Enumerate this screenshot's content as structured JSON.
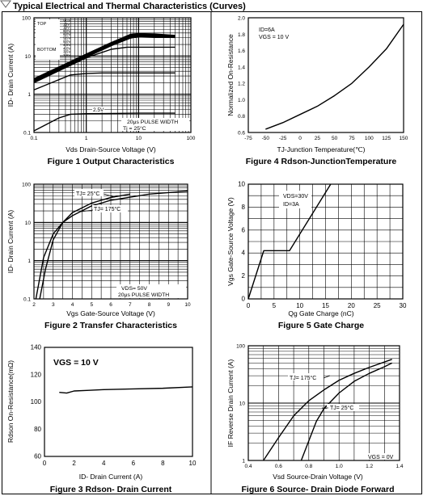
{
  "header": {
    "title": "Typical Electrical and Thermal Characteristics (Curves)"
  },
  "chart_data": [
    {
      "id": "fig1",
      "type": "line",
      "title": "Figure 1 Output Characteristics",
      "xlabel": "Vds Drain-Source Voltage (V)",
      "ylabel": "ID- Drain Current (A)",
      "xscale": "log",
      "yscale": "log",
      "xlim": [
        0.1,
        100
      ],
      "ylim": [
        0.1,
        100
      ],
      "xticks": [
        0.1,
        1,
        10,
        100
      ],
      "xtick_labels": [
        "0.1",
        "1",
        "10",
        "100"
      ],
      "yticks": [
        0.1,
        1,
        10,
        100
      ],
      "ytick_labels": [
        "0.1",
        "1",
        "10",
        "100"
      ],
      "grid": true,
      "legend": {
        "position": "top-left",
        "top_label": "TOP",
        "bottom_label": "BOTTOM",
        "entries": [
          "VGS",
          "15V",
          "10V",
          "8.0V",
          "6.0V",
          "5.5V",
          "5.0V",
          "4.5V",
          "4.0V",
          "3.5V",
          "2.5V"
        ]
      },
      "annotations": [
        "2.5V",
        "20μs PULSE WIDTH",
        "Tj = 25°C"
      ],
      "series": [
        {
          "name": "15V",
          "x": [
            0.1,
            1,
            3,
            7,
            10,
            20,
            50
          ],
          "y": [
            2.5,
            11,
            22,
            36,
            38,
            37,
            34
          ]
        },
        {
          "name": "10V",
          "x": [
            0.1,
            1,
            3,
            7,
            10,
            20,
            50
          ],
          "y": [
            2.4,
            10.5,
            21,
            34,
            37,
            36,
            33
          ]
        },
        {
          "name": "8.0V",
          "x": [
            0.1,
            1,
            3,
            7,
            10,
            20,
            50
          ],
          "y": [
            2.3,
            10,
            20,
            32,
            35,
            34,
            32
          ]
        },
        {
          "name": "6.0V",
          "x": [
            0.1,
            1,
            3,
            7,
            10,
            20,
            50
          ],
          "y": [
            2.2,
            9.5,
            19,
            30,
            33,
            32,
            31
          ]
        },
        {
          "name": "5.0V",
          "x": [
            0.1,
            1,
            3,
            6,
            10,
            20,
            50
          ],
          "y": [
            2.0,
            9,
            15,
            17,
            17,
            17,
            17
          ]
        },
        {
          "name": "4.0V",
          "x": [
            0.1,
            0.5,
            1,
            2,
            5,
            10,
            50
          ],
          "y": [
            1.3,
            3.2,
            3.5,
            3.6,
            3.6,
            3.6,
            3.6
          ]
        },
        {
          "name": "2.5V",
          "x": [
            0.1,
            0.3,
            0.5,
            1,
            10,
            50
          ],
          "y": [
            0.11,
            0.24,
            0.3,
            0.31,
            0.32,
            0.32
          ]
        }
      ]
    },
    {
      "id": "fig4",
      "type": "line",
      "title": "Figure 4 Rdson-JunctionTemperature",
      "xlabel": "TJ-Junction Temperature(℃)",
      "ylabel": "Normalized On-Resistance",
      "xlim": [
        -75,
        150
      ],
      "ylim": [
        0.6,
        2.0
      ],
      "xticks": [
        -75,
        -50,
        -25,
        0,
        25,
        50,
        75,
        100,
        125,
        150
      ],
      "xtick_labels": [
        "-75",
        "-50",
        "-25",
        "0",
        "25",
        "50",
        "75",
        "100",
        "125",
        "150"
      ],
      "yticks": [
        0.6,
        0.8,
        1.0,
        1.2,
        1.4,
        1.6,
        1.8,
        2.0
      ],
      "ytick_labels": [
        "0.6",
        "0.8",
        "1.0",
        "1.2",
        "1.4",
        "1.6",
        "1.8",
        "2.0"
      ],
      "grid": false,
      "annotations": [
        "ID=6A",
        "VGS = 10 V"
      ],
      "series": [
        {
          "x": [
            -50,
            -25,
            0,
            25,
            50,
            75,
            100,
            125,
            150
          ],
          "y": [
            0.64,
            0.72,
            0.82,
            0.92,
            1.05,
            1.2,
            1.4,
            1.62,
            1.92
          ]
        }
      ]
    },
    {
      "id": "fig2",
      "type": "line",
      "title": "Figure 2 Transfer Characteristics",
      "xlabel": "Vgs Gate-Source Voltage (V)",
      "ylabel": "ID- Drain Current (A)",
      "yscale": "log",
      "xlim": [
        2,
        10
      ],
      "ylim": [
        0.1,
        100
      ],
      "xticks": [
        2,
        3,
        4,
        5,
        6,
        7,
        8,
        9,
        10
      ],
      "xtick_labels": [
        "2",
        "3",
        "4",
        "5",
        "6",
        "7",
        "8",
        "9",
        "10"
      ],
      "yticks": [
        0.1,
        1,
        10,
        100
      ],
      "ytick_labels": [
        "0.1",
        "1",
        "10",
        "100"
      ],
      "grid": true,
      "annotations": [
        "TJ= 25°C",
        "TJ= 175°C",
        "VDS= 50V",
        "20μs PULSE WIDTH"
      ],
      "series": [
        {
          "name": "TJ= 25°C",
          "x": [
            2.3,
            2.6,
            3.0,
            3.5,
            4.0,
            5.0,
            6.0,
            7.0
          ],
          "y": [
            0.1,
            0.6,
            3.5,
            10,
            18,
            32,
            45,
            55
          ]
        },
        {
          "name": "TJ= 175°C",
          "x": [
            2.1,
            2.5,
            3.0,
            3.5,
            4.0,
            5.0,
            6.0,
            8.0,
            10.0
          ],
          "y": [
            0.1,
            1.2,
            5,
            10,
            15,
            27,
            38,
            55,
            66
          ]
        }
      ]
    },
    {
      "id": "fig5",
      "type": "line",
      "title": "Figure 5 Gate Charge",
      "xlabel": "Qg Gate Charge (nC)",
      "ylabel": "Vgs Gate-Source Voltage (V)",
      "xlim": [
        0,
        30
      ],
      "ylim": [
        0,
        10
      ],
      "xticks": [
        0,
        5,
        10,
        15,
        20,
        25,
        30
      ],
      "xtick_labels": [
        "0",
        "5",
        "10",
        "15",
        "20",
        "25",
        "30"
      ],
      "yticks": [
        0,
        2,
        4,
        6,
        8,
        10
      ],
      "ytick_labels": [
        "0",
        "2",
        "4",
        "6",
        "8",
        "10"
      ],
      "grid": true,
      "annotations": [
        "VDS=30V",
        "ID=3A"
      ],
      "series": [
        {
          "x": [
            0,
            3,
            8,
            16
          ],
          "y": [
            0,
            4.2,
            4.2,
            10
          ]
        }
      ]
    },
    {
      "id": "fig3",
      "type": "line",
      "title": "Figure 3 Rdson- Drain Current",
      "xlabel": "ID- Drain Current (A)",
      "ylabel": "Rdson On-Resistance(mΩ)",
      "xlim": [
        0,
        10
      ],
      "ylim": [
        60,
        140
      ],
      "xticks": [
        0,
        2,
        4,
        6,
        8,
        10
      ],
      "xtick_labels": [
        "0",
        "2",
        "4",
        "6",
        "8",
        "10"
      ],
      "yticks": [
        60,
        80,
        100,
        120,
        140
      ],
      "ytick_labels": [
        "60",
        "80",
        "100",
        "120",
        "140"
      ],
      "grid": false,
      "annotations": [
        "VGS = 10 V"
      ],
      "series": [
        {
          "x": [
            1,
            1.5,
            2,
            3,
            4,
            6,
            8,
            10
          ],
          "y": [
            107,
            106.5,
            108,
            108.5,
            109,
            109.5,
            110,
            111
          ]
        }
      ]
    },
    {
      "id": "fig6",
      "type": "line",
      "title": "Figure 6 Source- Drain Diode Forward",
      "xlabel": "Vsd Source-Drain Voltage (V)",
      "ylabel": "IF Reverse Drain Current (A)",
      "yscale": "log",
      "xlim": [
        0.4,
        1.4
      ],
      "ylim": [
        1,
        100
      ],
      "xticks": [
        0.4,
        0.6,
        0.8,
        1.0,
        1.2,
        1.4
      ],
      "xtick_labels": [
        "0.4",
        "0.6",
        "0.8",
        "1.0",
        "1.2",
        "1.4"
      ],
      "yticks": [
        1,
        10,
        100
      ],
      "ytick_labels": [
        "1",
        "10",
        "100"
      ],
      "grid": true,
      "annotations": [
        "TJ= 175°C",
        "TJ= 25°C",
        "VGS = 0V"
      ],
      "series": [
        {
          "name": "TJ= 175°C",
          "x": [
            0.5,
            0.6,
            0.7,
            0.8,
            0.9,
            1.0,
            1.1,
            1.2,
            1.35
          ],
          "y": [
            1,
            2.5,
            6,
            11,
            17,
            25,
            33,
            42,
            58
          ]
        },
        {
          "name": "TJ= 25°C",
          "x": [
            0.75,
            0.8,
            0.85,
            0.9,
            1.0,
            1.1,
            1.2,
            1.3,
            1.35
          ],
          "y": [
            1,
            2.2,
            4.8,
            8,
            15,
            24,
            33,
            43,
            50
          ]
        }
      ]
    }
  ]
}
